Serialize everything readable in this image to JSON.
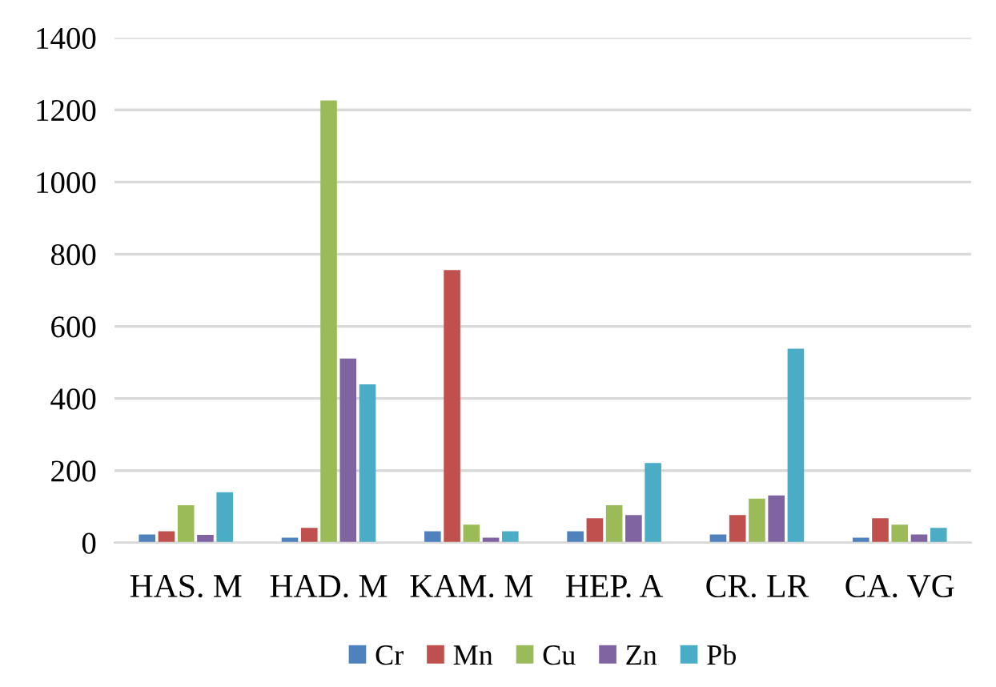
{
  "chart_data": {
    "type": "bar",
    "categories": [
      "HAS. M",
      "HAD. M",
      "KAM. M",
      "HEP. A",
      "CR. LR",
      "CA. VG"
    ],
    "series": [
      {
        "name": "Cr",
        "color": "#4f81bd",
        "values": [
          23,
          14,
          32,
          32,
          23,
          14
        ]
      },
      {
        "name": "Mn",
        "color": "#c0504d",
        "values": [
          32,
          41,
          756,
          68,
          77,
          68
        ]
      },
      {
        "name": "Cu",
        "color": "#9bbb59",
        "values": [
          104,
          1226,
          50,
          104,
          122,
          50
        ]
      },
      {
        "name": "Zn",
        "color": "#8064a2",
        "values": [
          22,
          511,
          14,
          77,
          131,
          23
        ]
      },
      {
        "name": "Pb",
        "color": "#4bacc6",
        "values": [
          140,
          439,
          32,
          221,
          538,
          41
        ]
      }
    ],
    "ylim": [
      0,
      1400
    ],
    "yticks": [
      0,
      200,
      400,
      600,
      800,
      1000,
      1200,
      1400
    ],
    "grid": "y",
    "legend": "bottom"
  }
}
